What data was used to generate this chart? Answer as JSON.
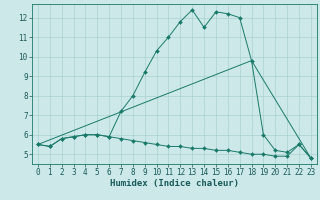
{
  "xlabel": "Humidex (Indice chaleur)",
  "bg_color": "#cce8e8",
  "grid_color": "#aad0d0",
  "line_color": "#1a7a6a",
  "xlim": [
    -0.5,
    23.5
  ],
  "ylim": [
    4.5,
    12.7
  ],
  "xticks": [
    0,
    1,
    2,
    3,
    4,
    5,
    6,
    7,
    8,
    9,
    10,
    11,
    12,
    13,
    14,
    15,
    16,
    17,
    18,
    19,
    20,
    21,
    22,
    23
  ],
  "yticks": [
    5,
    6,
    7,
    8,
    9,
    10,
    11,
    12
  ],
  "series1_x": [
    0,
    1,
    2,
    3,
    4,
    5,
    6,
    7,
    8,
    9,
    10,
    11,
    12,
    13,
    14,
    15,
    16,
    17,
    18,
    19,
    20,
    21,
    22,
    23
  ],
  "series1_y": [
    5.5,
    5.4,
    5.8,
    5.9,
    6.0,
    6.0,
    5.9,
    5.8,
    5.7,
    5.6,
    5.5,
    5.4,
    5.4,
    5.3,
    5.3,
    5.2,
    5.2,
    5.1,
    5.0,
    5.0,
    4.9,
    4.9,
    5.5,
    4.8
  ],
  "series2_x": [
    0,
    1,
    2,
    3,
    4,
    5,
    6,
    7,
    8,
    9,
    10,
    11,
    12,
    13,
    14,
    15,
    16,
    17,
    18,
    19,
    20,
    21,
    22,
    23
  ],
  "series2_y": [
    5.5,
    5.4,
    5.8,
    5.9,
    6.0,
    6.0,
    5.9,
    7.2,
    8.0,
    9.2,
    10.3,
    11.0,
    11.8,
    12.4,
    11.5,
    12.3,
    12.2,
    12.0,
    9.8,
    6.0,
    5.2,
    5.1,
    5.5,
    4.8
  ],
  "series3_x": [
    0,
    18,
    23
  ],
  "series3_y": [
    5.5,
    9.8,
    4.8
  ],
  "xlabel_fontsize": 6.5,
  "tick_fontsize": 5.5
}
